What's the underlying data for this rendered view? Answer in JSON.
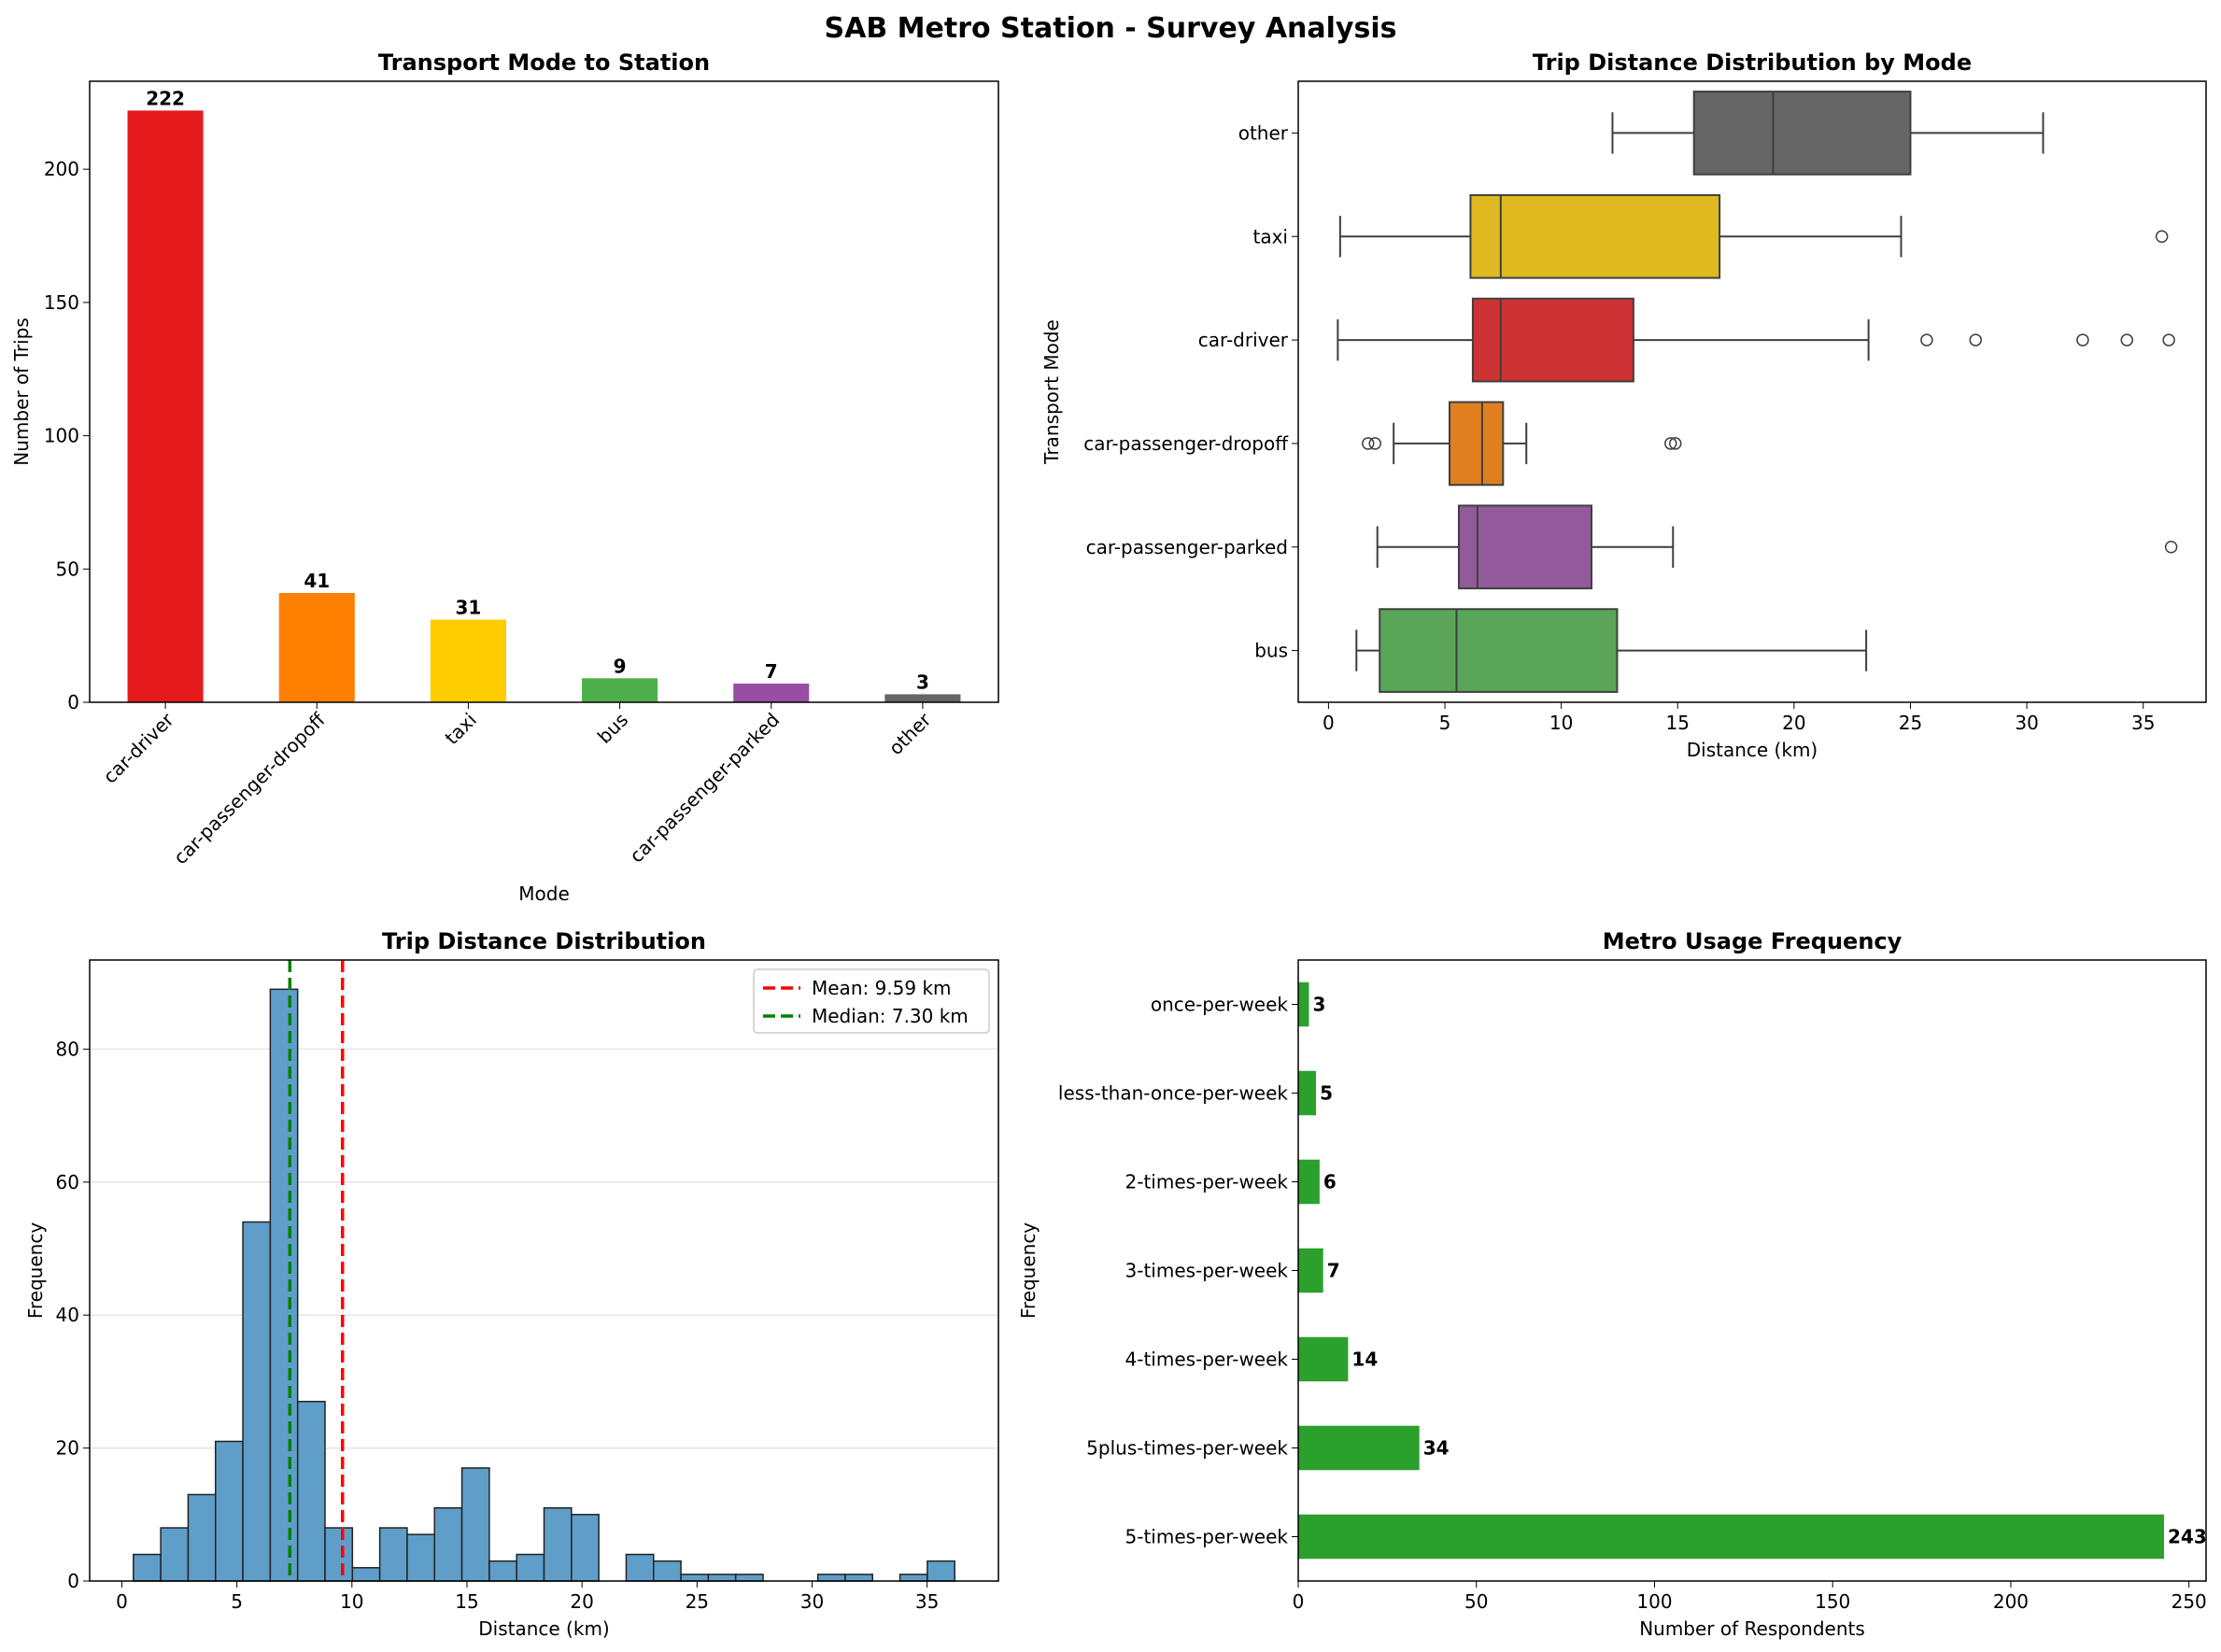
{
  "title": "SAB Metro Station - Survey Analysis",
  "chart_data": [
    {
      "type": "bar",
      "title": "Transport Mode to Station",
      "xlabel": "Mode",
      "ylabel": "Number of Trips",
      "categories": [
        "car-driver",
        "car-passenger-dropoff",
        "taxi",
        "bus",
        "car-passenger-parked",
        "other"
      ],
      "values": [
        222,
        41,
        31,
        9,
        7,
        3
      ],
      "colors": [
        "#e41a1c",
        "#ff7f00",
        "#ffcc00",
        "#4daf4a",
        "#984ea3",
        "#666666"
      ],
      "ylim": [
        0,
        233
      ],
      "yticks": [
        0,
        50,
        100,
        150,
        200
      ],
      "data_labels": [
        "222",
        "41",
        "31",
        "9",
        "7",
        "3"
      ],
      "grid": false
    },
    {
      "type": "box",
      "title": "Trip Distance Distribution by Mode",
      "xlabel": "Distance (km)",
      "ylabel": "Transport Mode",
      "categories": [
        "other",
        "taxi",
        "car-driver",
        "car-passenger-dropoff",
        "car-passenger-parked",
        "bus"
      ],
      "colors": [
        "#666666",
        "#deb91f",
        "#cd3234",
        "#e07f20",
        "#925a99",
        "#5aa658"
      ],
      "boxes": [
        {
          "whislo": 12.2,
          "q1": 15.7,
          "med": 19.1,
          "q3": 25.0,
          "whishi": 30.7,
          "fliers": []
        },
        {
          "whislo": 0.5,
          "q1": 6.1,
          "med": 7.4,
          "q3": 16.8,
          "whishi": 24.6,
          "fliers": [
            35.8
          ]
        },
        {
          "whislo": 0.4,
          "q1": 6.2,
          "med": 7.4,
          "q3": 13.1,
          "whishi": 23.2,
          "fliers": [
            25.7,
            27.8,
            32.4,
            34.3,
            36.1
          ]
        },
        {
          "whislo": 2.8,
          "q1": 5.2,
          "med": 6.6,
          "q3": 7.5,
          "whishi": 8.5,
          "fliers": [
            1.7,
            2.0,
            14.7,
            14.9
          ]
        },
        {
          "whislo": 2.1,
          "q1": 5.6,
          "med": 6.4,
          "q3": 11.3,
          "whishi": 14.8,
          "fliers": [
            36.2
          ]
        },
        {
          "whislo": 1.2,
          "q1": 2.2,
          "med": 5.5,
          "q3": 12.4,
          "whishi": 23.1,
          "fliers": []
        }
      ],
      "xlim": [
        -1.3,
        37.7
      ],
      "xticks": [
        0,
        5,
        10,
        15,
        20,
        25,
        30,
        35
      ],
      "grid": false
    },
    {
      "type": "histogram",
      "title": "Trip Distance Distribution",
      "xlabel": "Distance (km)",
      "ylabel": "Frequency",
      "bin_start": 0.5,
      "bin_width": 1.19,
      "counts": [
        4,
        8,
        13,
        21,
        54,
        89,
        27,
        8,
        2,
        8,
        7,
        11,
        17,
        3,
        4,
        11,
        10,
        0,
        4,
        3,
        1,
        1,
        1,
        0,
        0,
        1,
        1,
        0,
        1,
        3
      ],
      "color": "#5f9ec9",
      "xlim": [
        -1.4,
        38.1
      ],
      "ylim": [
        0,
        93.4
      ],
      "xticks": [
        0,
        5,
        10,
        15,
        20,
        25,
        30,
        35
      ],
      "yticks": [
        0,
        20,
        40,
        60,
        80
      ],
      "grid": "y",
      "legend_position": "top-right",
      "lines": [
        {
          "label": "Mean: 9.59 km",
          "x": 9.59,
          "color": "#ff0000"
        },
        {
          "label": "Median: 7.30 km",
          "x": 7.3,
          "color": "#008000"
        }
      ]
    },
    {
      "type": "barh",
      "title": "Metro Usage Frequency",
      "xlabel": "Number of Respondents",
      "ylabel": "Frequency",
      "categories": [
        "once-per-week",
        "less-than-once-per-week",
        "2-times-per-week",
        "3-times-per-week",
        "4-times-per-week",
        "5plus-times-per-week",
        "5-times-per-week"
      ],
      "values": [
        3,
        5,
        6,
        7,
        14,
        34,
        243
      ],
      "data_labels": [
        "3",
        "5",
        "6",
        "7",
        "14",
        "34",
        "243"
      ],
      "color": "#2ca02c",
      "xlim": [
        0,
        254.8
      ],
      "xticks": [
        0,
        50,
        100,
        150,
        200,
        250
      ],
      "grid": false
    }
  ]
}
